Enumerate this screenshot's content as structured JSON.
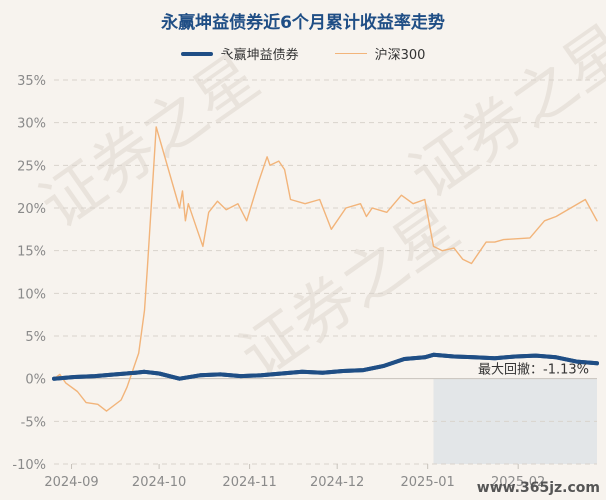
{
  "chart_data": {
    "type": "line",
    "title": "永赢坤益债券近6个月累计收益率走势",
    "x_tick_labels": [
      "2024-09",
      "2024-10",
      "2024-11",
      "2024-12",
      "2025-01",
      "2025-02"
    ],
    "y_tick_labels": [
      "35%",
      "30%",
      "25%",
      "20%",
      "15%",
      "10%",
      "5%",
      "0%",
      "-5%",
      "-10%"
    ],
    "ylim": [
      -10,
      35
    ],
    "x_range": [
      "2024-08-26",
      "2025-02-28"
    ],
    "grid": true,
    "legend_position": "top-center",
    "annotation": "最大回撤：-1.13%",
    "drawdown_start": "2025-01-03",
    "series": [
      {
        "name": "永赢坤益债券",
        "color": "#1f4e85",
        "x": [
          "2024-08-26",
          "2024-09-02",
          "2024-09-09",
          "2024-09-16",
          "2024-09-23",
          "2024-09-26",
          "2024-10-01",
          "2024-10-08",
          "2024-10-15",
          "2024-10-22",
          "2024-10-29",
          "2024-11-05",
          "2024-11-12",
          "2024-11-19",
          "2024-11-26",
          "2024-12-03",
          "2024-12-10",
          "2024-12-17",
          "2024-12-24",
          "2024-12-31",
          "2025-01-03",
          "2025-01-10",
          "2025-01-17",
          "2025-01-24",
          "2025-01-31",
          "2025-02-07",
          "2025-02-14",
          "2025-02-21",
          "2025-02-28"
        ],
        "values": [
          0.0,
          0.2,
          0.3,
          0.5,
          0.7,
          0.8,
          0.6,
          0.0,
          0.4,
          0.5,
          0.3,
          0.4,
          0.6,
          0.8,
          0.7,
          0.9,
          1.0,
          1.5,
          2.3,
          2.5,
          2.8,
          2.6,
          2.5,
          2.4,
          2.6,
          2.7,
          2.5,
          2.0,
          1.8
        ]
      },
      {
        "name": "沪深300",
        "color": "#f2b47a",
        "x": [
          "2024-08-26",
          "2024-08-28",
          "2024-08-30",
          "2024-09-03",
          "2024-09-06",
          "2024-09-10",
          "2024-09-13",
          "2024-09-18",
          "2024-09-20",
          "2024-09-24",
          "2024-09-26",
          "2024-09-27",
          "2024-09-30",
          "2024-10-08",
          "2024-10-09",
          "2024-10-10",
          "2024-10-11",
          "2024-10-14",
          "2024-10-16",
          "2024-10-18",
          "2024-10-21",
          "2024-10-24",
          "2024-10-28",
          "2024-10-31",
          "2024-11-04",
          "2024-11-07",
          "2024-11-08",
          "2024-11-11",
          "2024-11-13",
          "2024-11-15",
          "2024-11-20",
          "2024-11-25",
          "2024-11-29",
          "2024-12-04",
          "2024-12-09",
          "2024-12-11",
          "2024-12-13",
          "2024-12-18",
          "2024-12-23",
          "2024-12-27",
          "2024-12-31",
          "2025-01-03",
          "2025-01-06",
          "2025-01-10",
          "2025-01-13",
          "2025-01-16",
          "2025-01-21",
          "2025-01-24",
          "2025-01-27",
          "2025-02-05",
          "2025-02-10",
          "2025-02-14",
          "2025-02-19",
          "2025-02-24",
          "2025-02-28"
        ],
        "values": [
          0.0,
          0.5,
          -0.5,
          -1.5,
          -2.8,
          -3.0,
          -3.8,
          -2.5,
          -1.0,
          3.0,
          8.0,
          13.0,
          29.5,
          20.0,
          22.0,
          18.5,
          20.5,
          17.5,
          15.5,
          19.5,
          20.8,
          19.8,
          20.5,
          18.5,
          23.0,
          26.0,
          25.0,
          25.5,
          24.5,
          21.0,
          20.5,
          21.0,
          17.5,
          20.0,
          20.5,
          19.0,
          20.0,
          19.5,
          21.5,
          20.5,
          21.0,
          15.5,
          15.0,
          15.3,
          14.0,
          13.5,
          16.0,
          16.0,
          16.3,
          16.5,
          18.5,
          19.0,
          20.0,
          21.0,
          18.5
        ]
      }
    ]
  },
  "watermark_text": "www.365jz.com",
  "watermark_background": "证券之星"
}
